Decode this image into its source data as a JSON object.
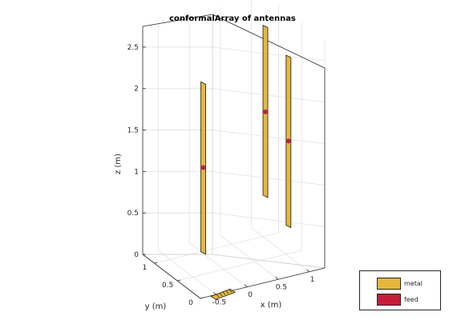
{
  "chart_data": {
    "type": "3d-antenna-array",
    "title": "conformalArray of antennas",
    "xlabel": "x (m)",
    "ylabel": "y (m)",
    "zlabel": "z (m)",
    "x_ticks": [
      "-0.5",
      "0",
      "0.5",
      "1"
    ],
    "y_ticks": [
      "0",
      "0.5",
      "1"
    ],
    "z_ticks": [
      "0",
      "0.5",
      "1",
      "1.5",
      "2",
      "2.5"
    ],
    "grid": true,
    "legend_position": "bottom-right",
    "legend": [
      {
        "name": "metal",
        "color": "#e5b83d"
      },
      {
        "name": "feed",
        "color": "#c41e3a"
      }
    ],
    "elements": [
      {
        "type": "dipole",
        "x": 0,
        "y": 1,
        "z_bottom": 0,
        "z_top": 2.05,
        "feed_z": 1.03
      },
      {
        "type": "dipole",
        "x": 1,
        "y": 1,
        "z_bottom": 0.5,
        "z_top": 2.55,
        "feed_z": 1.52
      },
      {
        "type": "dipole",
        "x": 1,
        "y": 0.5,
        "z_bottom": 0.35,
        "z_top": 2.4,
        "feed_z": 1.38
      },
      {
        "type": "printed-patch",
        "x": -0.4,
        "y": 0,
        "z": 0
      }
    ]
  }
}
